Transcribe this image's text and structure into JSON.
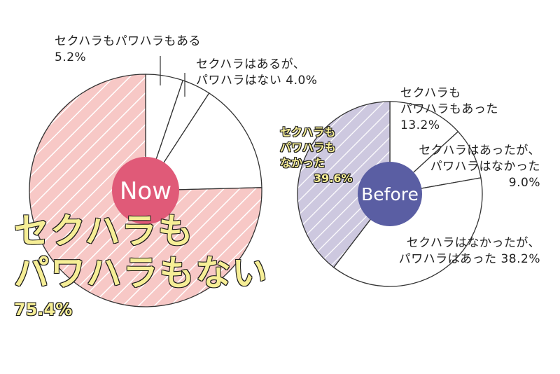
{
  "charts": [
    {
      "id": "now",
      "center_label": "Now",
      "center_color": "#e05a78",
      "slices": [
        {
          "label_lines": [
            "セクハラもパワハラもある"
          ],
          "pct_text": "5.2%",
          "value": 5.2,
          "fill": "#ffffff",
          "hatched": false
        },
        {
          "label_lines": [
            "セクハラはあるが、",
            "パワハラはない"
          ],
          "pct_text": "4.0%",
          "value": 4.0,
          "fill": "#ffffff",
          "hatched": false
        },
        {
          "label_lines": [],
          "pct_text": "",
          "value": 15.4,
          "fill": "#ffffff",
          "hatched": false
        },
        {
          "label_lines": [
            "セクハラも",
            "パワハラもない"
          ],
          "pct_text": "75.4%",
          "value": 75.4,
          "fill": "#f7c8c6",
          "hatched": true,
          "highlight": true
        }
      ]
    },
    {
      "id": "before",
      "center_label": "Before",
      "center_color": "#5a5ea3",
      "slices": [
        {
          "label_lines": [
            "セクハラも",
            "パワハラもあった"
          ],
          "pct_text": "13.2%",
          "value": 13.2,
          "fill": "#ffffff",
          "hatched": false
        },
        {
          "label_lines": [
            "セクハラはあったが、",
            "パワハラはなかった"
          ],
          "pct_text": "9.0%",
          "value": 9.0,
          "fill": "#ffffff",
          "hatched": false
        },
        {
          "label_lines": [
            "セクハラはなかったが、",
            "パワハラはあった"
          ],
          "pct_text": "38.2%",
          "value": 38.2,
          "fill": "#ffffff",
          "hatched": false
        },
        {
          "label_lines": [
            "セクハラも",
            "パワハラも",
            "なかった"
          ],
          "pct_text": "39.6%",
          "value": 39.6,
          "fill": "#cdc8df",
          "hatched": true,
          "highlight": true
        }
      ]
    }
  ],
  "chart_data": [
    {
      "type": "pie",
      "title": "",
      "categories": [
        "セクハラもパワハラもある",
        "セクハラはあるが、パワハラはない",
        "",
        "セクハラもパワハラもない"
      ],
      "values": [
        5.2,
        4.0,
        15.4,
        75.4
      ],
      "center_label": "Now"
    },
    {
      "type": "pie",
      "title": "",
      "categories": [
        "セクハラもパワハラもあった",
        "セクハラはあったが、パワハラはなかった",
        "セクハラはなかったが、パワハラはあった",
        "セクハラもパワハラもなかった"
      ],
      "values": [
        13.2,
        9.0,
        38.2,
        39.6
      ],
      "center_label": "Before"
    }
  ]
}
